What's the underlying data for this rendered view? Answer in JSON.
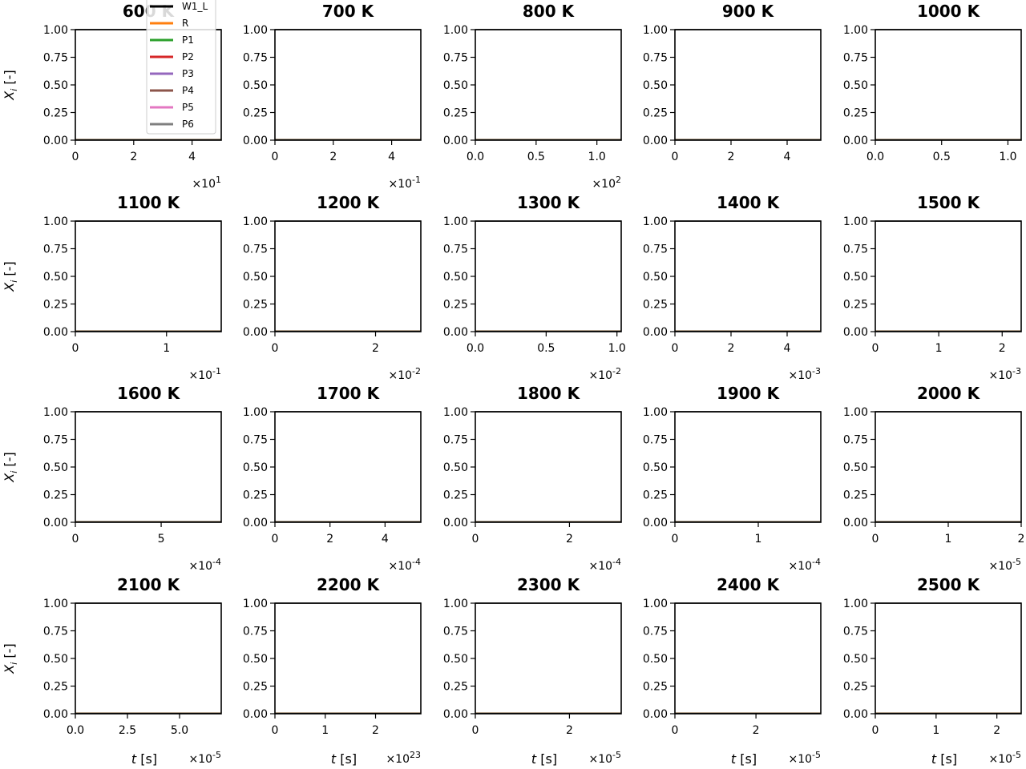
{
  "chart_data": {
    "type": "line",
    "ylabel": "X_i [-]",
    "xlabel": "t [s]",
    "ylim": [
      0,
      1
    ],
    "y_ticks": [
      "0.00",
      "0.25",
      "0.50",
      "0.75",
      "1.00"
    ],
    "series": [
      {
        "name": "W1_L",
        "color": "#000000"
      },
      {
        "name": "R",
        "color": "#ff7f0e"
      },
      {
        "name": "P1",
        "color": "#2ca02c"
      },
      {
        "name": "P2",
        "color": "#d62728"
      },
      {
        "name": "P3",
        "color": "#9467bd"
      },
      {
        "name": "P4",
        "color": "#8c564b"
      },
      {
        "name": "P5",
        "color": "#e377c2"
      },
      {
        "name": "P6",
        "color": "#7f7f7f"
      }
    ],
    "panels": [
      {
        "title": "600 K",
        "xlim": [
          0,
          5.0
        ],
        "x_ticks": [
          0,
          2,
          4
        ],
        "x_tick_labels": [
          "0",
          "2",
          "4"
        ],
        "offset_text": "×10^1"
      },
      {
        "title": "700 K",
        "xlim": [
          0,
          5.0
        ],
        "x_ticks": [
          0,
          2,
          4
        ],
        "x_tick_labels": [
          "0",
          "2",
          "4"
        ],
        "offset_text": "×10^-1"
      },
      {
        "title": "800 K",
        "xlim": [
          0,
          1.2
        ],
        "x_ticks": [
          0,
          0.5,
          1.0
        ],
        "x_tick_labels": [
          "0.0",
          "0.5",
          "1.0"
        ],
        "offset_text": "×10^2"
      },
      {
        "title": "900 K",
        "xlim": [
          0,
          5.2
        ],
        "x_ticks": [
          0,
          2,
          4
        ],
        "x_tick_labels": [
          "0",
          "2",
          "4"
        ],
        "offset_text": ""
      },
      {
        "title": "1000 K",
        "xlim": [
          0,
          1.1
        ],
        "x_ticks": [
          0,
          0.5,
          1.0
        ],
        "x_tick_labels": [
          "0.0",
          "0.5",
          "1.0"
        ],
        "offset_text": ""
      },
      {
        "title": "1100 K",
        "xlim": [
          0,
          1.6
        ],
        "x_ticks": [
          0,
          1
        ],
        "x_tick_labels": [
          "0",
          "1"
        ],
        "offset_text": "×10^-1"
      },
      {
        "title": "1200 K",
        "xlim": [
          0,
          2.9
        ],
        "x_ticks": [
          0,
          2
        ],
        "x_tick_labels": [
          "0",
          "2"
        ],
        "offset_text": "×10^-2"
      },
      {
        "title": "1300 K",
        "xlim": [
          0,
          1.03
        ],
        "x_ticks": [
          0,
          0.5,
          1.0
        ],
        "x_tick_labels": [
          "0.0",
          "0.5",
          "1.0"
        ],
        "offset_text": "×10^-2"
      },
      {
        "title": "1400 K",
        "xlim": [
          0,
          5.2
        ],
        "x_ticks": [
          0,
          2,
          4
        ],
        "x_tick_labels": [
          "0",
          "2",
          "4"
        ],
        "offset_text": "×10^-3"
      },
      {
        "title": "1500 K",
        "xlim": [
          0,
          2.3
        ],
        "x_ticks": [
          0,
          1,
          2
        ],
        "x_tick_labels": [
          "0",
          "1",
          "2"
        ],
        "offset_text": "×10^-3"
      },
      {
        "title": "1600 K",
        "xlim": [
          0,
          8.5
        ],
        "x_ticks": [
          0,
          5
        ],
        "x_tick_labels": [
          "0",
          "5"
        ],
        "offset_text": "×10^-4"
      },
      {
        "title": "1700 K",
        "xlim": [
          0,
          5.3
        ],
        "x_ticks": [
          0,
          2,
          4
        ],
        "x_tick_labels": [
          "0",
          "2",
          "4"
        ],
        "offset_text": "×10^-4"
      },
      {
        "title": "1800 K",
        "xlim": [
          0,
          3.1
        ],
        "x_ticks": [
          0,
          2
        ],
        "x_tick_labels": [
          "0",
          "2"
        ],
        "offset_text": "×10^-4"
      },
      {
        "title": "1900 K",
        "xlim": [
          0,
          1.75
        ],
        "x_ticks": [
          0,
          1
        ],
        "x_tick_labels": [
          "0",
          "1"
        ],
        "offset_text": "×10^-4"
      },
      {
        "title": "2000 K",
        "xlim": [
          0,
          2.0
        ],
        "x_ticks": [
          0,
          1,
          2
        ],
        "x_tick_labels": [
          "0",
          "1",
          "2"
        ],
        "offset_text": "×10^-5"
      },
      {
        "title": "2100 K",
        "xlim": [
          0,
          7.0
        ],
        "x_ticks": [
          0,
          2.5,
          5.0
        ],
        "x_tick_labels": [
          "0.0",
          "2.5",
          "5.0"
        ],
        "offset_text": "×10^-5"
      },
      {
        "title": "2200 K",
        "xlim": [
          0,
          2.9
        ],
        "x_ticks": [
          0,
          1,
          2
        ],
        "x_tick_labels": [
          "0",
          "1",
          "2"
        ],
        "offset_text": "×10^23"
      },
      {
        "title": "2300 K",
        "xlim": [
          0,
          3.1
        ],
        "x_ticks": [
          0,
          2
        ],
        "x_tick_labels": [
          "0",
          "2"
        ],
        "offset_text": "×10^-5"
      },
      {
        "title": "2400 K",
        "xlim": [
          0,
          3.6
        ],
        "x_ticks": [
          0,
          2
        ],
        "x_tick_labels": [
          "0",
          "2"
        ],
        "offset_text": "×10^-5"
      },
      {
        "title": "2500 K",
        "xlim": [
          0,
          2.4
        ],
        "x_ticks": [
          0,
          1,
          2
        ],
        "x_tick_labels": [
          "0",
          "1",
          "2"
        ],
        "offset_text": "×10^-5"
      }
    ]
  }
}
